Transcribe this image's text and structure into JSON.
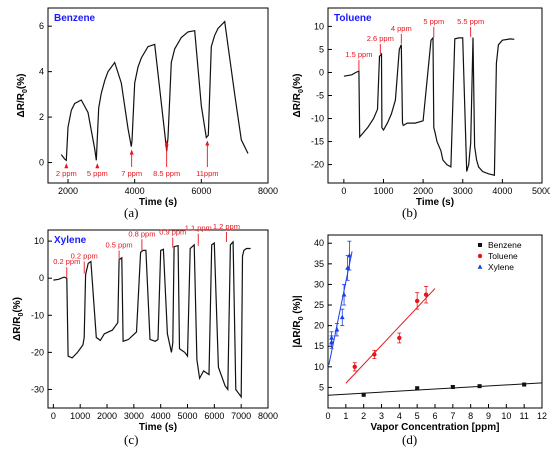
{
  "colors": {
    "axis": "#000000",
    "trace": "#111111",
    "annot": "#e8141c",
    "tag": "#1a1aff",
    "benzene": "#111111",
    "toluene": "#e8141c",
    "xylene": "#1a3fe8",
    "eb_x": "#3355ee"
  },
  "panel_tags": {
    "a": "(a)",
    "b": "(b)",
    "c": "(c)",
    "d": "(d)"
  },
  "chart_data": [
    {
      "id": "a",
      "type": "line",
      "series_label": "Benzene",
      "xlabel": "Time (s)",
      "ylabel": "ΔR/R0(%)",
      "xlim": [
        1400,
        8000
      ],
      "ylim": [
        -0.9,
        6.8
      ],
      "xticks": [
        2000,
        4000,
        6000,
        8000
      ],
      "yticks": [
        0,
        2,
        4,
        6
      ],
      "x": [
        1800,
        1900,
        1950,
        2000,
        2100,
        2200,
        2400,
        2600,
        2800,
        2850,
        2920,
        3000,
        3100,
        3200,
        3400,
        3600,
        3800,
        3900,
        3920,
        4000,
        4100,
        4200,
        4400,
        4600,
        4900,
        4960,
        5000,
        5100,
        5200,
        5400,
        5600,
        5800,
        6000,
        6150,
        6210,
        6300,
        6400,
        6500,
        6700,
        7000,
        7200,
        7400
      ],
      "y": [
        0.35,
        0.15,
        0.1,
        1.55,
        2.3,
        2.6,
        2.75,
        2.2,
        0.6,
        0.1,
        2.4,
        3.05,
        3.6,
        4.0,
        4.4,
        3.5,
        1.5,
        0.7,
        0.95,
        3.5,
        4.2,
        4.6,
        5.1,
        5.2,
        1.3,
        0.5,
        1.1,
        4.4,
        5.0,
        5.5,
        5.75,
        5.8,
        2.5,
        1.1,
        1.2,
        5.1,
        5.6,
        5.9,
        6.2,
        3.0,
        1.0,
        0.4
      ],
      "annotations": [
        {
          "label": "2 ppm",
          "x": 1950,
          "y": 0.1
        },
        {
          "label": "5 ppm",
          "x": 2880,
          "y": 0.1
        },
        {
          "label": "7 ppm",
          "x": 3910,
          "y": 0.7
        },
        {
          "label": "8.5 ppm",
          "x": 4960,
          "y": 1.1
        },
        {
          "label": "11ppm",
          "x": 6180,
          "y": 1.1
        }
      ]
    },
    {
      "id": "b",
      "type": "line",
      "series_label": "Toluene",
      "xlabel": "Time (s)",
      "ylabel": "ΔR/R0(%)",
      "xlim": [
        -400,
        5000
      ],
      "ylim": [
        -24,
        14
      ],
      "xticks": [
        0,
        1000,
        2000,
        3000,
        4000,
        5000
      ],
      "yticks": [
        -20,
        -15,
        -10,
        -5,
        0,
        5,
        10
      ],
      "x": [
        0,
        200,
        300,
        380,
        400,
        450,
        600,
        750,
        850,
        900,
        950,
        960,
        1000,
        1100,
        1200,
        1300,
        1400,
        1450,
        1480,
        1500,
        1600,
        1800,
        2000,
        2200,
        2250,
        2270,
        2300,
        2350,
        2450,
        2500,
        2600,
        2700,
        2800,
        2900,
        3000,
        3100,
        3150,
        3200,
        3260,
        3300,
        3350,
        3400,
        3500,
        3650,
        3800,
        3850,
        3900,
        4000,
        4200,
        4300
      ],
      "y": [
        -0.8,
        -0.5,
        0,
        0.3,
        -14,
        -13.5,
        -12,
        -10,
        -8,
        3.5,
        4,
        -12,
        -12.5,
        -11,
        -9,
        -6,
        5,
        6,
        -11,
        -11.5,
        -11,
        -11,
        -10.5,
        7,
        7.5,
        -12,
        -13,
        -15,
        -17,
        -19,
        -20,
        -20.5,
        7.3,
        7.5,
        7.5,
        -21.5,
        -20,
        -15.3,
        7.6,
        -16,
        -19,
        -20.5,
        -21.5,
        -22,
        -22.3,
        2,
        6,
        7,
        7.3,
        7.2
      ],
      "annotations": [
        {
          "label": "1.5 ppm",
          "x": 380,
          "y": 0.3
        },
        {
          "label": "2.6 ppm",
          "x": 920,
          "y": 3.8
        },
        {
          "label": "4 ppm",
          "x": 1450,
          "y": 6
        },
        {
          "label": "5 ppm",
          "x": 2270,
          "y": 7.5
        },
        {
          "label": "5.5 ppm",
          "x": 3200,
          "y": 7.5
        }
      ]
    },
    {
      "id": "c",
      "type": "line",
      "series_label": "Xylene",
      "xlabel": "Time (s)",
      "ylabel": "ΔR/R0(%)",
      "xlim": [
        -200,
        8000
      ],
      "ylim": [
        -35,
        13
      ],
      "xticks": [
        0,
        1000,
        2000,
        3000,
        4000,
        5000,
        6000,
        7000,
        8000
      ],
      "yticks": [
        -30,
        -20,
        -10,
        0,
        10
      ],
      "x": [
        0,
        200,
        400,
        500,
        550,
        700,
        900,
        1100,
        1150,
        1200,
        1300,
        1400,
        1600,
        1700,
        1750,
        1900,
        2200,
        2400,
        2450,
        2550,
        2600,
        2800,
        3100,
        3250,
        3350,
        3450,
        3600,
        3800,
        3900,
        4000,
        4100,
        4250,
        4400,
        4450,
        4500,
        4650,
        4700,
        4900,
        5000,
        5100,
        5250,
        5350,
        5450,
        5600,
        5800,
        5900,
        6000,
        6150,
        6300,
        6400,
        6500,
        6600,
        6700,
        6800,
        6900,
        7000,
        7050,
        7100,
        7200,
        7350
      ],
      "y": [
        -0.5,
        -0.3,
        0.3,
        0,
        -21,
        -21.5,
        -20,
        -18,
        -16,
        1,
        4,
        4.5,
        -16,
        -16.5,
        -16.8,
        -15,
        -14,
        -12,
        5,
        5.5,
        -17,
        -16.5,
        -14.5,
        7,
        7.5,
        7.5,
        -16.5,
        -17,
        -16.5,
        7.5,
        7.8,
        -15,
        -20,
        -17.5,
        8.5,
        8.8,
        -19,
        -20,
        -21,
        8,
        9,
        -22,
        -27,
        -25,
        -26,
        9,
        9.5,
        -24,
        -27,
        -29,
        -30,
        9,
        9.8,
        -30,
        -31,
        -32,
        6,
        7.5,
        8,
        8
      ],
      "annotations": [
        {
          "label": "0.2 ppm",
          "x": 500,
          "y": 0
        },
        {
          "label": "0.2 ppm",
          "x": 1150,
          "y": 1
        },
        {
          "label": "0.5 ppm",
          "x": 2450,
          "y": 4.5
        },
        {
          "label": "0.8 ppm",
          "x": 3300,
          "y": 7
        },
        {
          "label": "0.9 ppm",
          "x": 4450,
          "y": 8
        },
        {
          "label": "1.1 ppm",
          "x": 5400,
          "y": 8.5
        },
        {
          "label": "1.2 ppm",
          "x": 6450,
          "y": 9.5
        }
      ]
    },
    {
      "id": "d",
      "type": "scatter",
      "xlabel": "Vapor Concentration [ppm]",
      "ylabel": "|ΔR/R0 (%)|",
      "xlim": [
        0,
        12
      ],
      "ylim": [
        0,
        42
      ],
      "xticks": [
        0,
        1,
        2,
        3,
        4,
        5,
        6,
        7,
        8,
        9,
        10,
        11,
        12
      ],
      "yticks": [
        5,
        10,
        15,
        20,
        25,
        30,
        35,
        40
      ],
      "legend_position": "top-right",
      "series": [
        {
          "name": "Benzene",
          "marker": "square",
          "x": [
            2,
            5,
            7,
            8.5,
            11
          ],
          "y": [
            3.2,
            4.8,
            5.1,
            5.3,
            5.7
          ],
          "err": [
            0.2,
            0.3,
            0.3,
            0.3,
            0.3
          ],
          "fit": {
            "x": [
              0,
              12
            ],
            "y": [
              3.1,
              6.1
            ]
          }
        },
        {
          "name": "Toluene",
          "marker": "circle",
          "x": [
            1.5,
            2.6,
            4,
            5,
            5.5
          ],
          "y": [
            10,
            13,
            17,
            26,
            27.5
          ],
          "err": [
            1.0,
            1.0,
            1.2,
            2.0,
            2.0
          ],
          "fit": {
            "x": [
              1,
              6
            ],
            "y": [
              6,
              29
            ]
          }
        },
        {
          "name": "Xylene",
          "marker": "triangle",
          "x": [
            0.2,
            0.2,
            0.5,
            0.8,
            0.9,
            1.1,
            1.2
          ],
          "y": [
            16,
            17,
            19,
            22,
            27.5,
            34,
            37
          ],
          "err": [
            1.5,
            1.5,
            1.5,
            2.0,
            2.5,
            3.0,
            3.5
          ],
          "fit": {
            "x": [
              0.05,
              1.35
            ],
            "y": [
              10.5,
              38
            ]
          }
        }
      ]
    }
  ]
}
